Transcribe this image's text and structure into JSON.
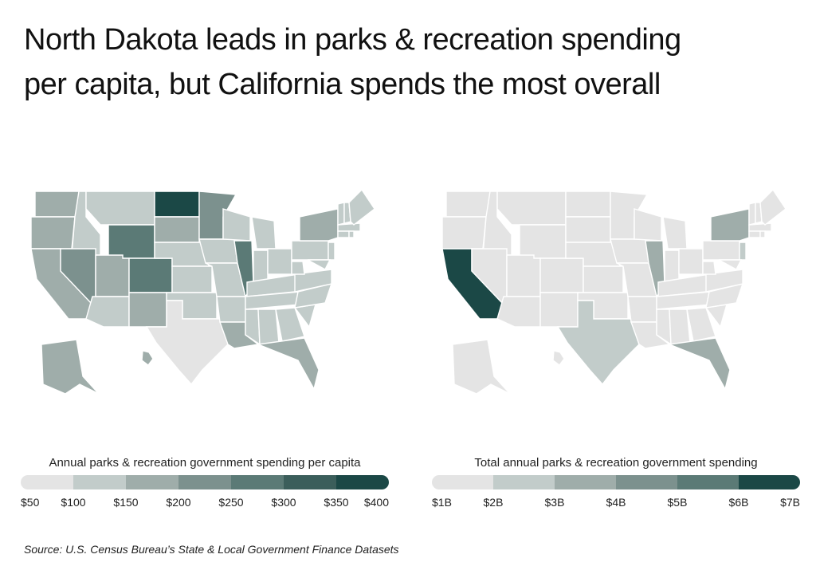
{
  "title_line1": "North Dakota leads in parks & recreation spending",
  "title_line2": "per capita, but California spends the most overall",
  "source": "Source:  U.S. Census Bureau’s State & Local Government Finance Datasets",
  "left_map": {
    "legend_title": "Annual parks & recreation government spending per capita",
    "ticks": [
      "$50",
      "$100",
      "$150",
      "$200",
      "$250",
      "$300",
      "$350",
      "$400"
    ],
    "scale_colors": [
      "#e4e4e4",
      "#c2ccca",
      "#9fadaa",
      "#7c918e",
      "#5b7a76",
      "#3b5e5b",
      "#1b4846"
    ],
    "state_shading": {
      "North Dakota": "#1b4846",
      "Wyoming": "#5b7a76",
      "Colorado": "#5b7a76",
      "Nevada": "#7c918e",
      "Minnesota": "#7c918e",
      "Illinois": "#5b7a76",
      "Washington": "#9fadaa",
      "Oregon": "#9fadaa",
      "California": "#9fadaa",
      "Utah": "#9fadaa",
      "New Mexico": "#9fadaa",
      "South Dakota": "#9fadaa",
      "New York": "#9fadaa",
      "Louisiana": "#9fadaa",
      "Florida": "#9fadaa",
      "Alaska": "#9fadaa",
      "Texas": "#e4e4e4",
      "Hawaii": "#9fadaa",
      "other": "#c2ccca"
    }
  },
  "right_map": {
    "legend_title": "Total annual parks & recreation government spending",
    "ticks": [
      "$1B",
      "$2B",
      "$3B",
      "$4B",
      "$5B",
      "$6B",
      "$7B"
    ],
    "scale_colors": [
      "#e4e4e4",
      "#c2ccca",
      "#9fadaa",
      "#7c918e",
      "#5b7a76",
      "#1b4846"
    ],
    "state_shading": {
      "California": "#1b4846",
      "Texas": "#c2ccca",
      "Florida": "#9fadaa",
      "Illinois": "#9fadaa",
      "New York": "#9fadaa",
      "New Jersey": "#c2ccca",
      "Washington": "#e4e4e4",
      "other": "#e4e4e4"
    }
  }
}
